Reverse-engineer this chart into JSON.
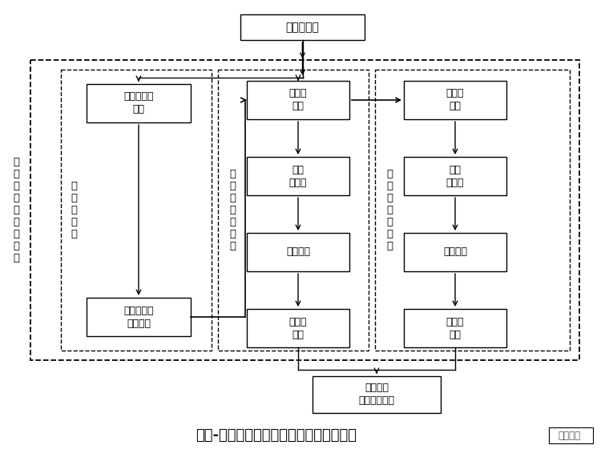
{
  "title": "旋喷-袖阀组合式止水帷幕施工流程示意图",
  "title_right": "豆丁施工",
  "bg_color": "#ffffff",
  "top_box": "护坡桩施工",
  "bottom_box": "土方开挖\n支撑体系施工",
  "left_label_outer": "组\n合\n式\n止\n水\n帷\n幕\n施\n工",
  "left_label_inner": "旋\n喷\n桩\n施\n工",
  "left_boxes": [
    "高压旋喷桩\n成孔",
    "高压旋喷桩\n旋喷成桩"
  ],
  "mid_label": "外\n排\n袖\n阀\n管\n施\n工",
  "mid_boxes": [
    "袖阀管\n成孔",
    "灌注\n充填料",
    "下袖阀管",
    "袖阀管\n注浆"
  ],
  "right_label": "内\n排\n袖\n阀\n管\n施\n工",
  "right_boxes": [
    "袖阀管\n成孔",
    "灌注\n充填料",
    "下袖阀管",
    "袖阀管\n注浆"
  ]
}
